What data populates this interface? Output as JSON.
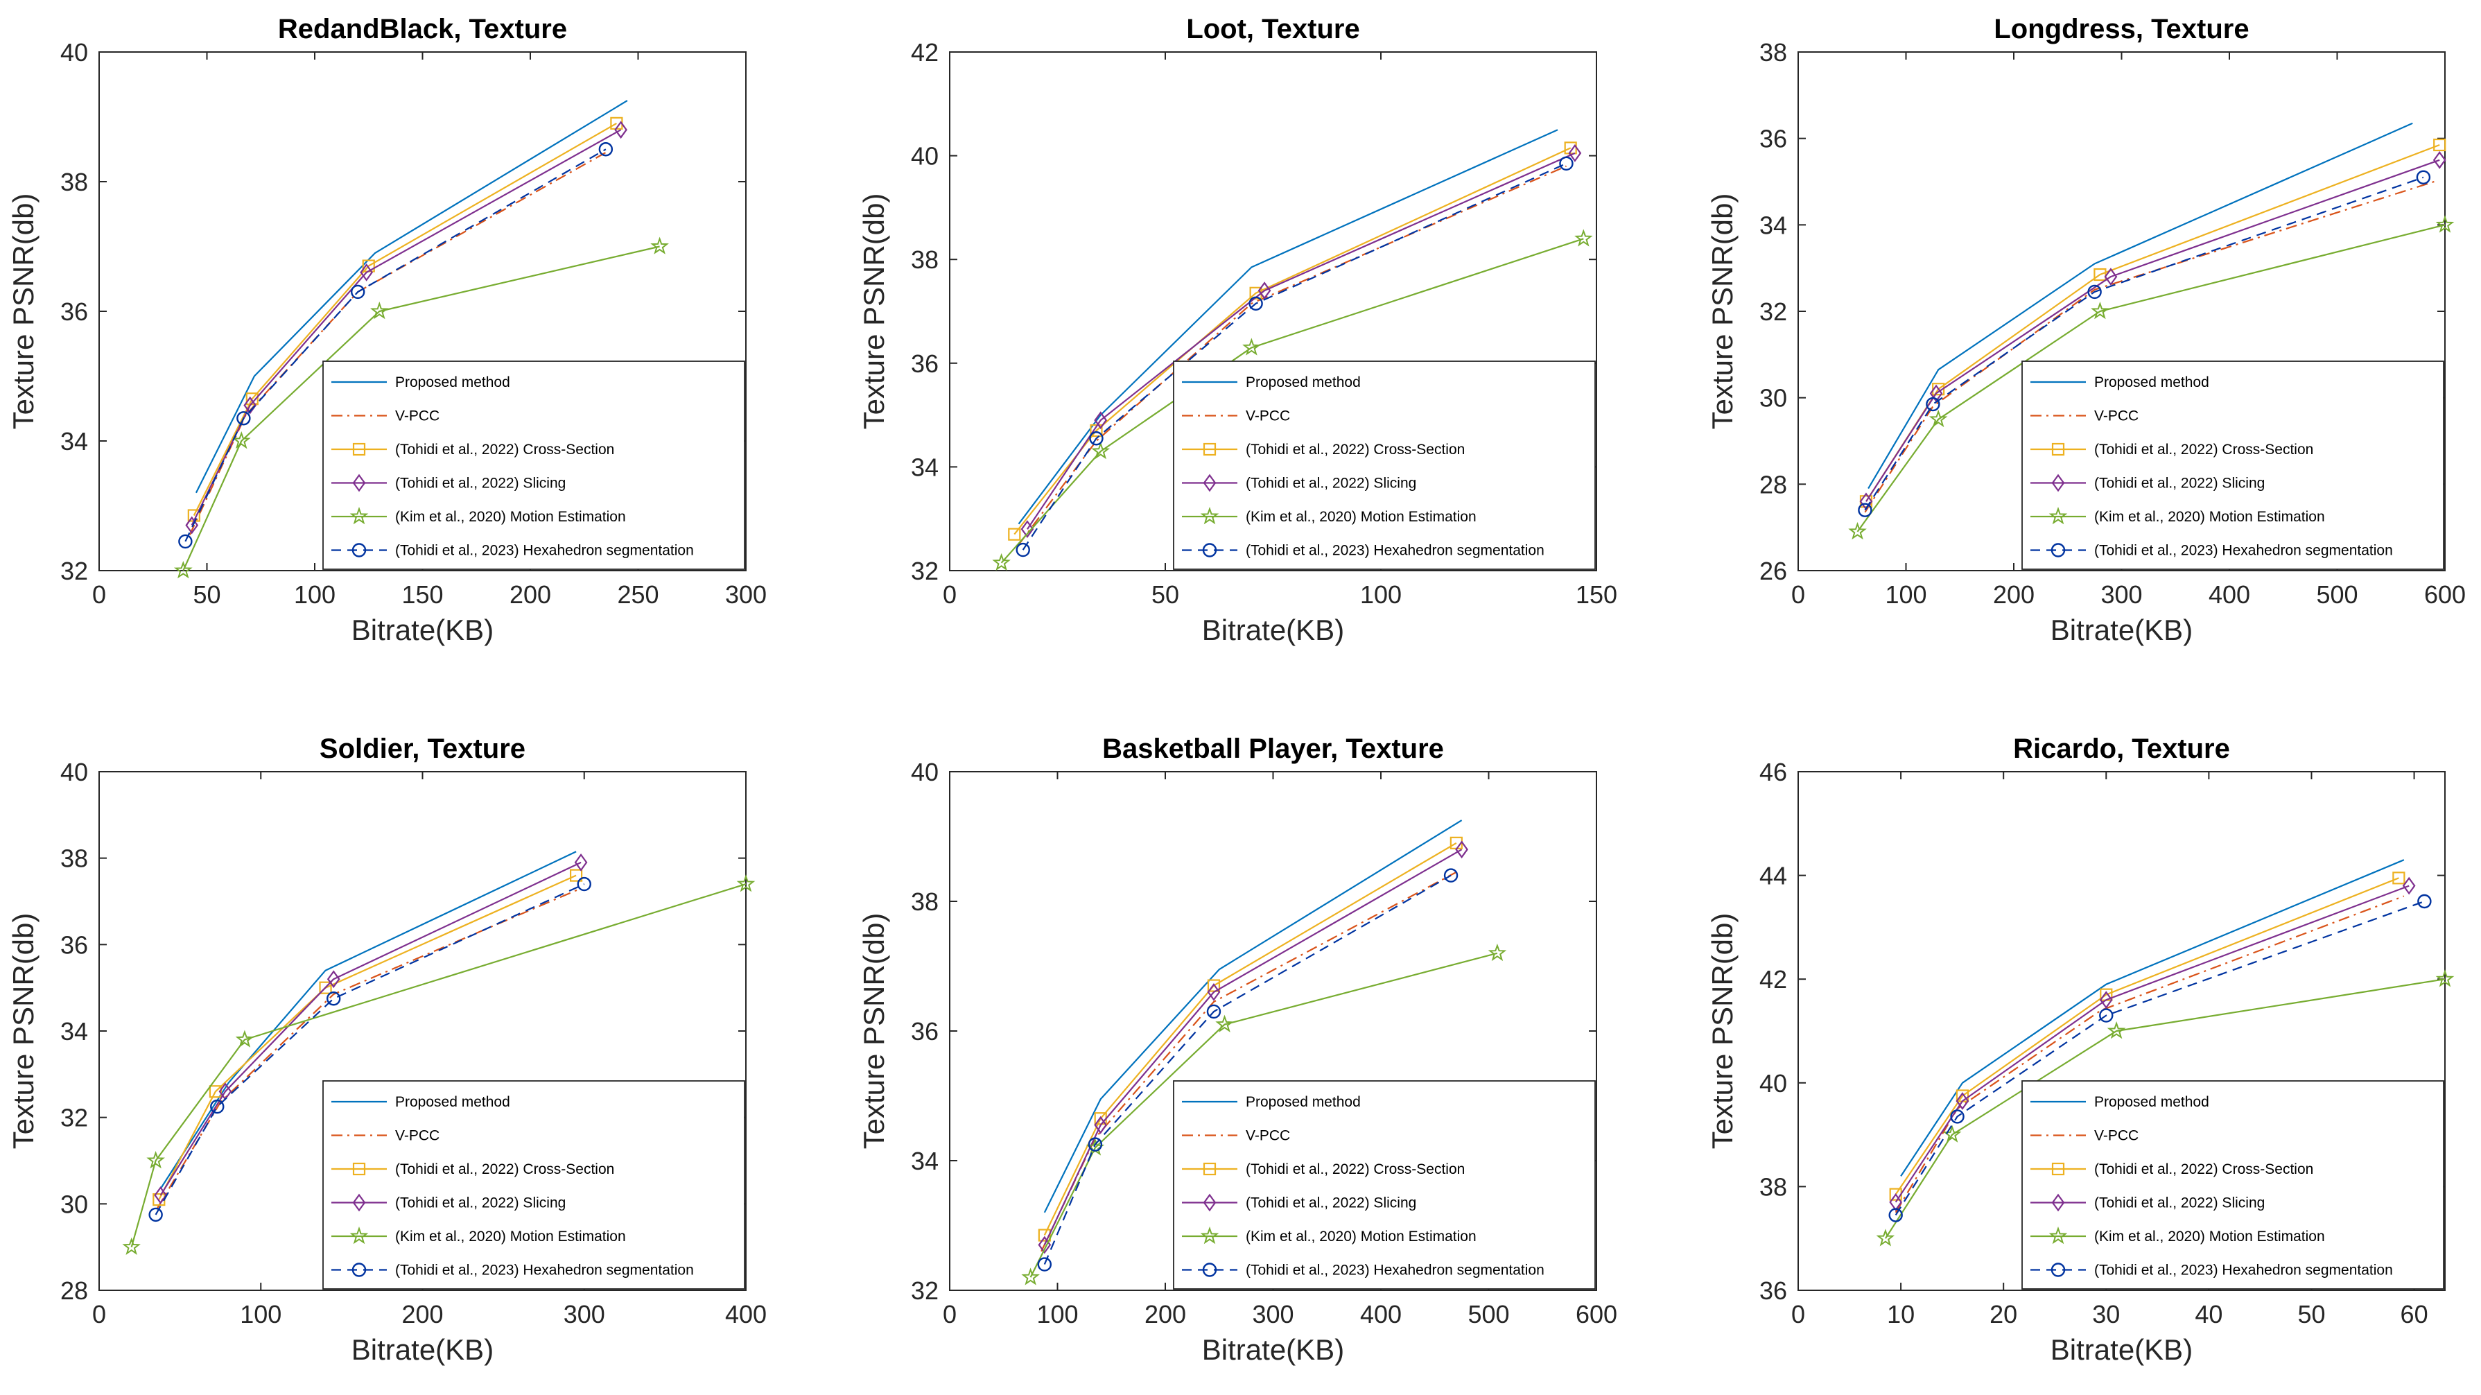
{
  "figure": {
    "legend_location": "bottom-right",
    "grid": false
  },
  "series_styles": [
    {
      "name": "Proposed method",
      "color": "#0072BD",
      "dash": "solid",
      "marker": "none"
    },
    {
      "name": "V-PCC",
      "color": "#D95319",
      "dash": "dashdot",
      "marker": "none"
    },
    {
      "name": "(Tohidi et al., 2022) Cross-Section",
      "color": "#EDB120",
      "dash": "solid",
      "marker": "square"
    },
    {
      "name": "(Tohidi et al., 2022) Slicing",
      "color": "#7E2F8E",
      "dash": "solid",
      "marker": "diamond"
    },
    {
      "name": "(Kim et al., 2020) Motion Estimation",
      "color": "#77AC30",
      "dash": "solid",
      "marker": "pentagram"
    },
    {
      "name": "(Tohidi et al., 2023) Hexahedron segmentation",
      "color": "#0033A0",
      "dash": "dashed",
      "marker": "circle"
    }
  ],
  "chart_data": [
    {
      "type": "line",
      "title": "RedandBlack, Texture",
      "xlabel": "Bitrate(KB)",
      "ylabel": "Texture PSNR(db)",
      "xlim": [
        0,
        300
      ],
      "ylim": [
        32,
        40
      ],
      "xticks": [
        0,
        50,
        100,
        150,
        200,
        250,
        300
      ],
      "yticks": [
        32,
        34,
        36,
        38,
        40
      ],
      "series": [
        {
          "name": "Proposed method",
          "x": [
            45,
            72,
            128,
            245
          ],
          "y": [
            33.2,
            35.0,
            36.9,
            39.25
          ]
        },
        {
          "name": "V-PCC",
          "x": [
            42,
            68,
            120,
            235
          ],
          "y": [
            32.55,
            34.4,
            36.3,
            38.45
          ]
        },
        {
          "name": "(Tohidi et al., 2022) Cross-Section",
          "x": [
            44,
            71,
            125,
            240
          ],
          "y": [
            32.85,
            34.65,
            36.7,
            38.9
          ]
        },
        {
          "name": "(Tohidi et al., 2022) Slicing",
          "x": [
            43,
            70,
            124,
            242
          ],
          "y": [
            32.7,
            34.55,
            36.6,
            38.8
          ]
        },
        {
          "name": "(Kim et al., 2020) Motion Estimation",
          "x": [
            39,
            66,
            130,
            260
          ],
          "y": [
            32.0,
            34.0,
            36.0,
            37.0
          ]
        },
        {
          "name": "(Tohidi et al., 2023) Hexahedron segmentation",
          "x": [
            40,
            67,
            120,
            235
          ],
          "y": [
            32.45,
            34.35,
            36.3,
            38.5
          ]
        }
      ]
    },
    {
      "type": "line",
      "title": "Loot, Texture",
      "xlabel": "Bitrate(KB)",
      "ylabel": "Texture PSNR(db)",
      "xlim": [
        0,
        150
      ],
      "ylim": [
        32,
        42
      ],
      "xticks": [
        0,
        50,
        100,
        150
      ],
      "yticks": [
        32,
        34,
        36,
        38,
        40,
        42
      ],
      "series": [
        {
          "name": "Proposed method",
          "x": [
            16,
            35,
            70,
            141
          ],
          "y": [
            32.9,
            35.0,
            37.85,
            40.5
          ]
        },
        {
          "name": "V-PCC",
          "x": [
            16,
            34,
            70,
            143
          ],
          "y": [
            32.5,
            34.5,
            37.15,
            39.8
          ]
        },
        {
          "name": "(Tohidi et al., 2022) Cross-Section",
          "x": [
            15,
            34,
            71,
            144
          ],
          "y": [
            32.7,
            34.7,
            37.35,
            40.15
          ]
        },
        {
          "name": "(Tohidi et al., 2022) Slicing",
          "x": [
            18,
            35,
            73,
            145
          ],
          "y": [
            32.8,
            34.9,
            37.4,
            40.05
          ]
        },
        {
          "name": "(Kim et al., 2020) Motion Estimation",
          "x": [
            12,
            35,
            70,
            147
          ],
          "y": [
            32.15,
            34.3,
            36.3,
            38.4
          ]
        },
        {
          "name": "(Tohidi et al., 2023) Hexahedron segmentation",
          "x": [
            17,
            34,
            71,
            143
          ],
          "y": [
            32.4,
            34.55,
            37.15,
            39.85
          ]
        }
      ]
    },
    {
      "type": "line",
      "title": "Longdress, Texture",
      "xlabel": "Bitrate(KB)",
      "ylabel": "Texture PSNR(db)",
      "xlim": [
        0,
        600
      ],
      "ylim": [
        26,
        38
      ],
      "xticks": [
        0,
        100,
        200,
        300,
        400,
        500,
        600
      ],
      "yticks": [
        26,
        28,
        30,
        32,
        34,
        36,
        38
      ],
      "series": [
        {
          "name": "Proposed method",
          "x": [
            65,
            130,
            275,
            570
          ],
          "y": [
            27.9,
            30.65,
            33.1,
            36.35
          ]
        },
        {
          "name": "V-PCC",
          "x": [
            62,
            125,
            275,
            590
          ],
          "y": [
            27.35,
            29.8,
            32.5,
            35.0
          ]
        },
        {
          "name": "(Tohidi et al., 2022) Cross-Section",
          "x": [
            63,
            130,
            280,
            595
          ],
          "y": [
            27.6,
            30.2,
            32.85,
            35.85
          ]
        },
        {
          "name": "(Tohidi et al., 2022) Slicing",
          "x": [
            63,
            128,
            290,
            595
          ],
          "y": [
            27.6,
            30.1,
            32.8,
            35.5
          ]
        },
        {
          "name": "(Kim et al., 2020) Motion Estimation",
          "x": [
            55,
            130,
            280,
            600
          ],
          "y": [
            26.9,
            29.5,
            32.0,
            34.0
          ]
        },
        {
          "name": "(Tohidi et al., 2023) Hexahedron segmentation",
          "x": [
            62,
            125,
            275,
            580
          ],
          "y": [
            27.4,
            29.85,
            32.45,
            35.1
          ]
        }
      ]
    },
    {
      "type": "line",
      "title": "Soldier, Texture",
      "xlabel": "Bitrate(KB)",
      "ylabel": "Texture PSNR(db)",
      "xlim": [
        0,
        400
      ],
      "ylim": [
        28,
        40
      ],
      "xticks": [
        0,
        100,
        200,
        300,
        400
      ],
      "yticks": [
        28,
        30,
        32,
        34,
        36,
        38,
        40
      ],
      "series": [
        {
          "name": "Proposed method",
          "x": [
            38,
            80,
            140,
            295
          ],
          "y": [
            30.35,
            32.8,
            35.4,
            38.15
          ]
        },
        {
          "name": "V-PCC",
          "x": [
            36,
            75,
            145,
            298
          ],
          "y": [
            29.9,
            32.35,
            34.85,
            37.3
          ]
        },
        {
          "name": "(Tohidi et al., 2022) Cross-Section",
          "x": [
            37,
            72,
            140,
            295
          ],
          "y": [
            30.1,
            32.6,
            35.0,
            37.6
          ]
        },
        {
          "name": "(Tohidi et al., 2022) Slicing",
          "x": [
            38,
            78,
            145,
            298
          ],
          "y": [
            30.2,
            32.6,
            35.2,
            37.9
          ]
        },
        {
          "name": "(Kim et al., 2020) Motion Estimation",
          "x": [
            20,
            35,
            90,
            400
          ],
          "y": [
            29.0,
            31.0,
            33.8,
            37.4
          ]
        },
        {
          "name": "(Tohidi et al., 2023) Hexahedron segmentation",
          "x": [
            35,
            73,
            145,
            300
          ],
          "y": [
            29.75,
            32.25,
            34.75,
            37.4
          ]
        }
      ]
    },
    {
      "type": "line",
      "title": "Basketball Player, Texture",
      "xlabel": "Bitrate(KB)",
      "ylabel": "Texture PSNR(db)",
      "xlim": [
        0,
        600
      ],
      "ylim": [
        32,
        40
      ],
      "xticks": [
        0,
        100,
        200,
        300,
        400,
        500,
        600
      ],
      "yticks": [
        32,
        34,
        36,
        38,
        40
      ],
      "series": [
        {
          "name": "Proposed method",
          "x": [
            88,
            140,
            250,
            475
          ],
          "y": [
            33.2,
            34.95,
            36.95,
            39.25
          ]
        },
        {
          "name": "V-PCC",
          "x": [
            85,
            135,
            245,
            470
          ],
          "y": [
            32.6,
            34.35,
            36.45,
            38.45
          ]
        },
        {
          "name": "(Tohidi et al., 2022) Cross-Section",
          "x": [
            88,
            140,
            245,
            470
          ],
          "y": [
            32.85,
            34.65,
            36.7,
            38.9
          ]
        },
        {
          "name": "(Tohidi et al., 2022) Slicing",
          "x": [
            88,
            140,
            245,
            475
          ],
          "y": [
            32.7,
            34.55,
            36.6,
            38.8
          ]
        },
        {
          "name": "(Kim et al., 2020) Motion Estimation",
          "x": [
            75,
            135,
            255,
            508
          ],
          "y": [
            32.2,
            34.2,
            36.1,
            37.2
          ]
        },
        {
          "name": "(Tohidi et al., 2023) Hexahedron segmentation",
          "x": [
            88,
            135,
            245,
            465
          ],
          "y": [
            32.4,
            34.25,
            36.3,
            38.4
          ]
        }
      ]
    },
    {
      "type": "line",
      "title": "Ricardo, Texture",
      "xlabel": "Bitrate(KB)",
      "ylabel": "Texture PSNR(db)",
      "xlim": [
        0,
        63
      ],
      "ylim": [
        36,
        46
      ],
      "xticks": [
        0,
        10,
        20,
        30,
        40,
        50,
        60
      ],
      "yticks": [
        36,
        38,
        40,
        42,
        44,
        46
      ],
      "series": [
        {
          "name": "Proposed method",
          "x": [
            10,
            16,
            30,
            59
          ],
          "y": [
            38.2,
            40.0,
            41.9,
            44.3
          ]
        },
        {
          "name": "V-PCC",
          "x": [
            9.5,
            15.5,
            29.5,
            59
          ],
          "y": [
            37.5,
            39.5,
            41.4,
            43.6
          ]
        },
        {
          "name": "(Tohidi et al., 2022) Cross-Section",
          "x": [
            9.5,
            16,
            30,
            58.5
          ],
          "y": [
            37.85,
            39.75,
            41.7,
            43.95
          ]
        },
        {
          "name": "(Tohidi et al., 2022) Slicing",
          "x": [
            9.5,
            16,
            30,
            59.5
          ],
          "y": [
            37.7,
            39.65,
            41.6,
            43.8
          ]
        },
        {
          "name": "(Kim et al., 2020) Motion Estimation",
          "x": [
            8.5,
            15,
            31,
            63
          ],
          "y": [
            37.0,
            39.0,
            41.0,
            42.0
          ]
        },
        {
          "name": "(Tohidi et al., 2023) Hexahedron segmentation",
          "x": [
            9.5,
            15.5,
            30,
            61
          ],
          "y": [
            37.45,
            39.35,
            41.3,
            43.5
          ]
        }
      ]
    }
  ]
}
